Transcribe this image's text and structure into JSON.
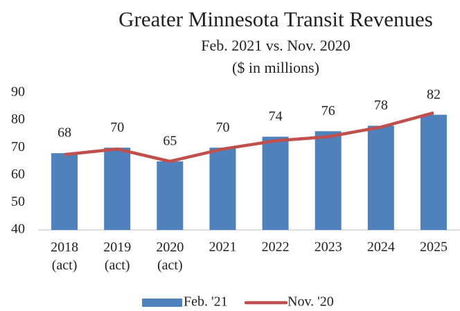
{
  "chart_data": {
    "type": "combo",
    "title": "Greater Minnesota Transit Revenues",
    "subtitle": [
      "Feb. 2021 vs. Nov. 2020",
      "($ in millions)"
    ],
    "categories": [
      "2018 (act)",
      "2019 (act)",
      "2020 (act)",
      "2021",
      "2022",
      "2023",
      "2024",
      "2025"
    ],
    "series": [
      {
        "name": "Feb. '21",
        "type": "bar",
        "color": "#4f81bd",
        "values": [
          68,
          70,
          65,
          70,
          74,
          76,
          78,
          82
        ]
      },
      {
        "name": "Nov. '20",
        "type": "line",
        "color": "#c0504d",
        "values": [
          67.5,
          69.5,
          65,
          69.5,
          72.5,
          74,
          77.5,
          82.7
        ]
      }
    ],
    "ylim": [
      40,
      90
    ],
    "yticks": [
      40,
      50,
      60,
      70,
      80,
      90
    ],
    "legend": "bottom"
  }
}
